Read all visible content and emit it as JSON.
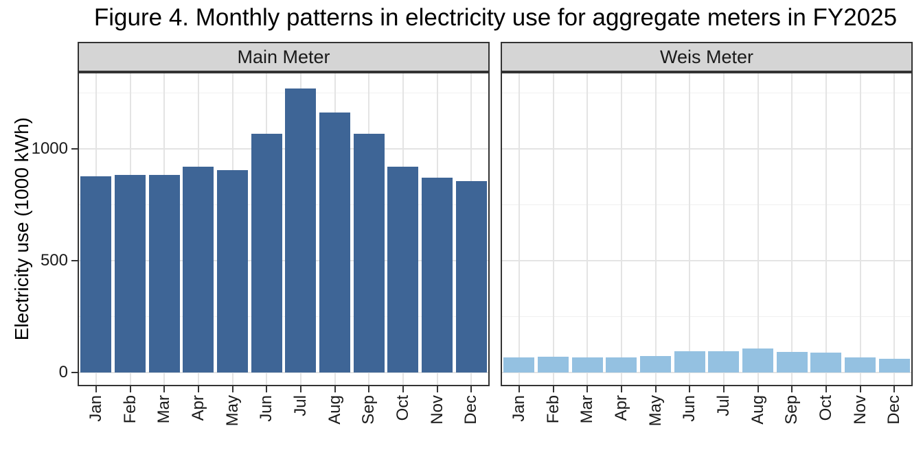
{
  "chart_data": {
    "type": "bar",
    "title": "Figure 4. Monthly patterns in electricity use for aggregate meters in FY2025",
    "ylabel": "Electricity use (1000 kWh)",
    "xlabel": "",
    "facet_labels": [
      "Main Meter",
      "Weis Meter"
    ],
    "categories": [
      "Jan",
      "Feb",
      "Mar",
      "Apr",
      "May",
      "Jun",
      "Jul",
      "Aug",
      "Sep",
      "Oct",
      "Nov",
      "Dec"
    ],
    "series": [
      {
        "name": "Main Meter",
        "color": "#3E6596",
        "values": [
          876,
          885,
          882,
          921,
          904,
          1068,
          1270,
          1163,
          1066,
          921,
          871,
          855
        ]
      },
      {
        "name": "Weis Meter",
        "color": "#94C1E1",
        "values": [
          68,
          71,
          69,
          69,
          74,
          94,
          96,
          106,
          93,
          88,
          66,
          62
        ]
      }
    ],
    "yticks": [
      0,
      500,
      1000
    ],
    "ytick_labels": [
      "0",
      "500",
      "1000"
    ],
    "yticks_minor": [
      250,
      750,
      1250
    ],
    "ylim": [
      0,
      1340
    ],
    "grid": true,
    "legend": false,
    "x_label_angle": 90
  },
  "colors": {
    "bar_main": "#3E6596",
    "bar_weis": "#94C1E1",
    "panel_header_bg": "#D5D5D5",
    "panel_border": "#333333",
    "grid_major": "#E4E4E4",
    "grid_minor": "#F0F0F0",
    "text": "#1A1A1A"
  }
}
